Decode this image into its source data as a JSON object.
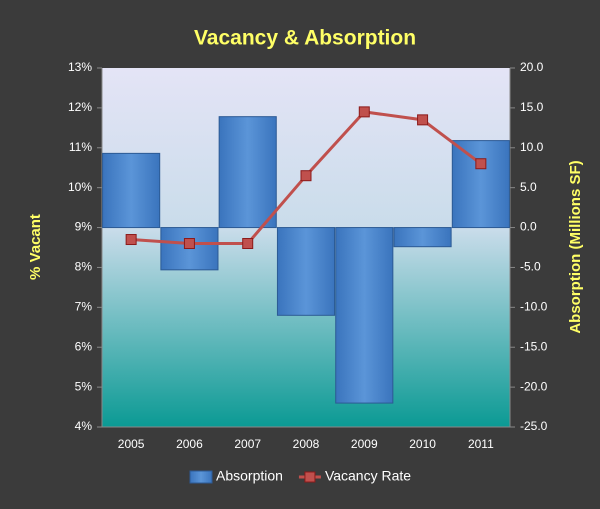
{
  "chart_data": {
    "type": "bar",
    "title": "Vacancy & Absorption",
    "y_label": "% Vacant",
    "y2_label": "Absorption (Millions SF)",
    "categories": [
      "2005",
      "2006",
      "2007",
      "2008",
      "2009",
      "2010",
      "2011"
    ],
    "series": [
      {
        "name": "Absorption",
        "type": "bar",
        "axis": "y2",
        "color": "#4a86c8",
        "values": [
          9.3,
          -5.3,
          13.9,
          -11.0,
          -22.0,
          -2.4,
          10.9
        ]
      },
      {
        "name": "Vacancy Rate",
        "type": "line",
        "color": "#c0504d",
        "values": [
          8.7,
          8.6,
          8.6,
          10.3,
          11.9,
          11.7,
          10.6
        ]
      }
    ],
    "ylim": [
      4,
      13
    ],
    "yticks": [
      {
        "value": 4,
        "label": "4%"
      },
      {
        "value": 5,
        "label": "5%"
      },
      {
        "value": 6,
        "label": "6%"
      },
      {
        "value": 7,
        "label": "7%"
      },
      {
        "value": 8,
        "label": "8%"
      },
      {
        "value": 9,
        "label": "9%"
      },
      {
        "value": 10,
        "label": "10%"
      },
      {
        "value": 11,
        "label": "11%"
      },
      {
        "value": 12,
        "label": "12%"
      },
      {
        "value": 13,
        "label": "13%"
      }
    ],
    "y2lim": [
      -25,
      20
    ],
    "y2ticks": [
      {
        "value": -25,
        "label": "-25.0"
      },
      {
        "value": -20,
        "label": "-20.0"
      },
      {
        "value": -15,
        "label": "-15.0"
      },
      {
        "value": -10,
        "label": "-10.0"
      },
      {
        "value": -5,
        "label": "-5.0"
      },
      {
        "value": 0,
        "label": "0.0"
      },
      {
        "value": 5,
        "label": "5.0"
      },
      {
        "value": 10,
        "label": "10.0"
      },
      {
        "value": 15,
        "label": "15.0"
      },
      {
        "value": 20,
        "label": "20.0"
      }
    ],
    "legend": "bottom"
  }
}
